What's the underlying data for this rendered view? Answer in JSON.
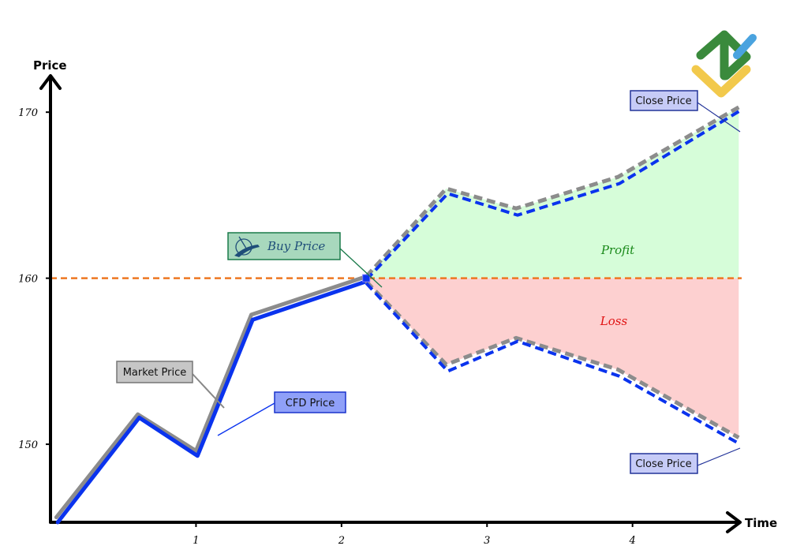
{
  "chart_data": {
    "type": "line",
    "xlabel": "Time",
    "ylabel": "Price",
    "xlim": [
      0,
      4.75
    ],
    "ylim": [
      145.3,
      174
    ],
    "x_ticks": [
      1,
      2,
      3,
      4
    ],
    "y_ticks": [
      150,
      160,
      170
    ],
    "reference_line": {
      "value": 160,
      "color": "#ee7722"
    },
    "series": [
      {
        "name": "Market Price",
        "color": "#8c8c8c",
        "x": [
          0.04,
          0.6,
          1.0,
          1.38,
          2.17
        ],
        "y": [
          145.6,
          151.8,
          149.6,
          157.8,
          160.1
        ]
      },
      {
        "name": "CFD Price",
        "color": "#0a33ee",
        "x": [
          0.05,
          0.61,
          1.01,
          1.39,
          2.17
        ],
        "y": [
          145.3,
          151.6,
          149.3,
          157.5,
          159.8
        ]
      }
    ],
    "scenarios": {
      "up": {
        "market": {
          "x": [
            2.17,
            2.72,
            3.2,
            3.9,
            4.73
          ],
          "y": [
            160.1,
            165.4,
            164.2,
            166.1,
            170.3
          ]
        },
        "cfd": {
          "x": [
            2.17,
            2.73,
            3.21,
            3.91,
            4.74
          ],
          "y": [
            159.9,
            165.1,
            163.8,
            165.7,
            170.1
          ]
        }
      },
      "down": {
        "market": {
          "x": [
            2.17,
            2.72,
            3.2,
            3.9,
            4.73
          ],
          "y": [
            159.8,
            154.8,
            156.4,
            154.5,
            150.4
          ]
        },
        "cfd": {
          "x": [
            2.17,
            2.73,
            3.21,
            3.91,
            4.74
          ],
          "y": [
            159.7,
            154.4,
            156.2,
            154.1,
            150.0
          ]
        }
      }
    },
    "zones": [
      {
        "label": "Profit",
        "color": "#1a8a1a",
        "fill": "#d6fdd9"
      },
      {
        "label": "Loss",
        "color": "#e01010",
        "fill": "#fdd0d0"
      }
    ],
    "callouts": {
      "buy_price": "Buy Price",
      "market_price": "Market Price",
      "cfd_price": "CFD Price",
      "close_price_top": "Close Price",
      "close_price_bottom": "Close Price"
    }
  },
  "logo": {
    "name": "brand-logo",
    "colors": [
      "#3a8a3c",
      "#f2c94c",
      "#4aa3df"
    ]
  }
}
